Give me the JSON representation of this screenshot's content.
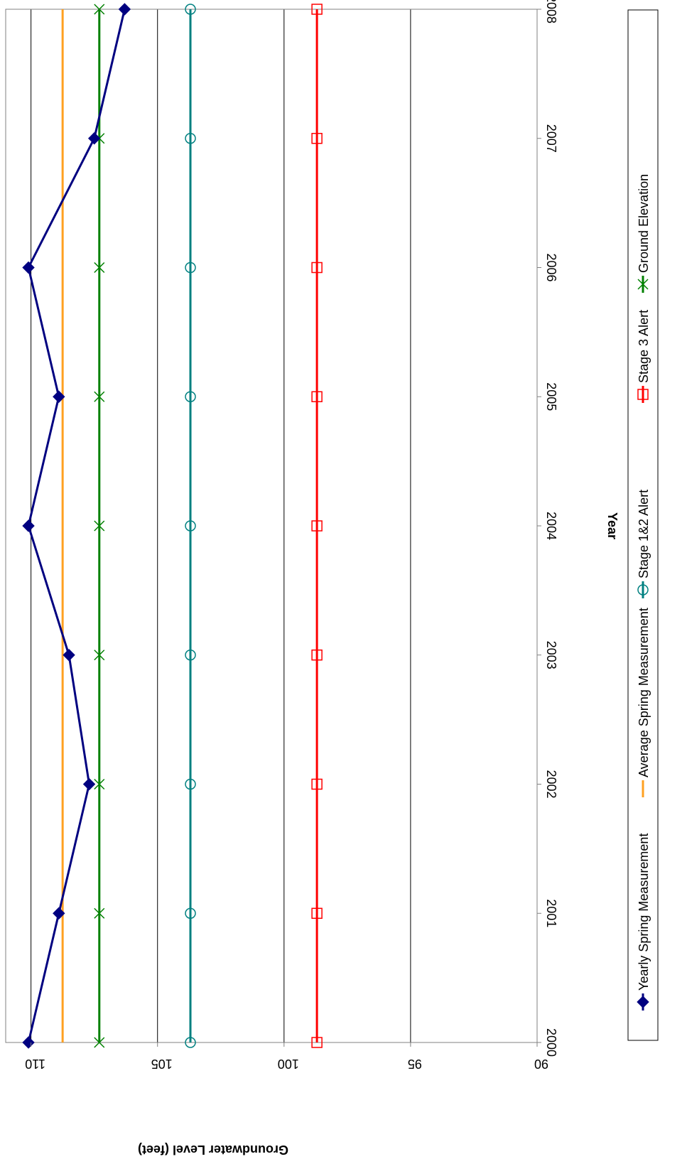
{
  "chart_data": {
    "type": "line",
    "title": "",
    "xlabel": "Year",
    "ylabel": "Groundwater Level (feet)",
    "x": [
      2000,
      2001,
      2002,
      2003,
      2004,
      2005,
      2006,
      2007,
      2008
    ],
    "xlim": [
      2000,
      2008
    ],
    "ylim": [
      90,
      111
    ],
    "yticks": [
      90,
      95,
      100,
      105,
      110
    ],
    "grid": true,
    "legend_position": "right",
    "rotation": "chart rotated 90 degrees clockwise",
    "series": [
      {
        "name": "Yearly Spring Measurement",
        "values": [
          110.1,
          108.9,
          107.7,
          108.5,
          110.1,
          108.9,
          110.1,
          107.5,
          106.3
        ],
        "color": "#000080",
        "marker": "diamond-filled",
        "line_width": 3
      },
      {
        "name": "Average Spring Measurement",
        "values": [
          108.75,
          108.75,
          108.75,
          108.75,
          108.75,
          108.75,
          108.75,
          108.75,
          108.75
        ],
        "color": "#ffa020",
        "marker": "none",
        "line_width": 3
      },
      {
        "name": "Stage 1&2 Alert",
        "values": [
          103.7,
          103.7,
          103.7,
          103.7,
          103.7,
          103.7,
          103.7,
          103.7,
          103.7
        ],
        "color": "#008080",
        "marker": "circle-open",
        "line_width": 3
      },
      {
        "name": "Stage 3 Alert",
        "values": [
          98.7,
          98.7,
          98.7,
          98.7,
          98.7,
          98.7,
          98.7,
          98.7,
          98.7
        ],
        "color": "#ff0000",
        "marker": "square-open",
        "line_width": 3
      },
      {
        "name": "Ground Elevation",
        "values": [
          107.3,
          107.3,
          107.3,
          107.3,
          107.3,
          107.3,
          107.3,
          107.3,
          107.3
        ],
        "color": "#008000",
        "marker": "x",
        "line_width": 3
      }
    ]
  }
}
